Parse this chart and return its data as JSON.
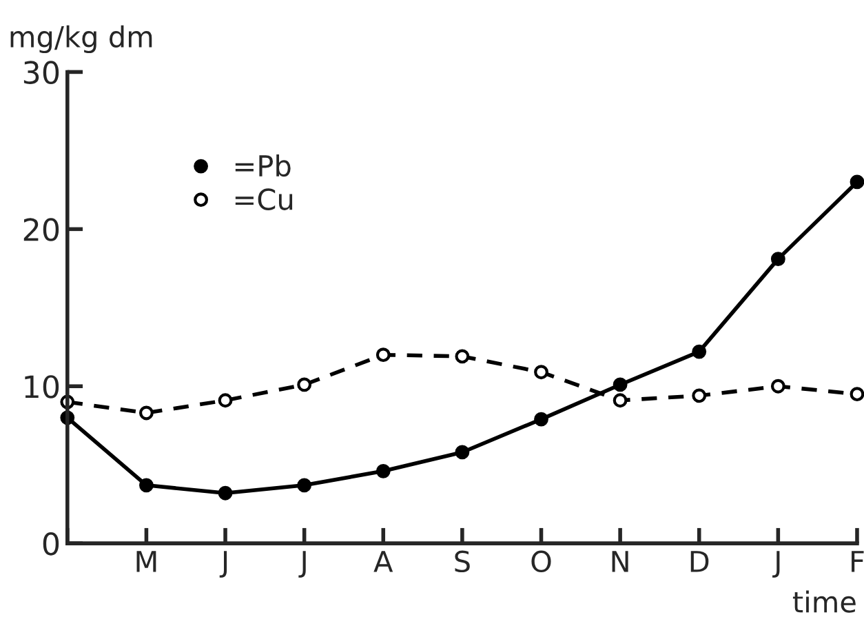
{
  "chart_data": {
    "type": "line",
    "ylabel": "mg/kg dm",
    "xlabel": "time",
    "categories": [
      null,
      "M",
      "J",
      "J",
      "A",
      "S",
      "O",
      "N",
      "D",
      "J",
      "F"
    ],
    "series": [
      {
        "name": "=Pb",
        "color": "#000000",
        "marker": "circle",
        "line_style": "solid",
        "values": [
          8.0,
          3.7,
          3.2,
          3.7,
          4.6,
          5.8,
          7.9,
          10.1,
          12.2,
          18.1,
          23.0
        ]
      },
      {
        "name": "=Cu",
        "color": "#000000",
        "marker": "circle",
        "line_style": "dashed",
        "values": [
          9.0,
          8.3,
          9.1,
          10.1,
          12.0,
          11.9,
          10.9,
          9.1,
          9.4,
          10.0,
          9.5
        ]
      }
    ],
    "ylim": [
      0,
      30
    ],
    "yticks": [
      0,
      10,
      20,
      30
    ],
    "grid": false,
    "legend": "top left"
  }
}
